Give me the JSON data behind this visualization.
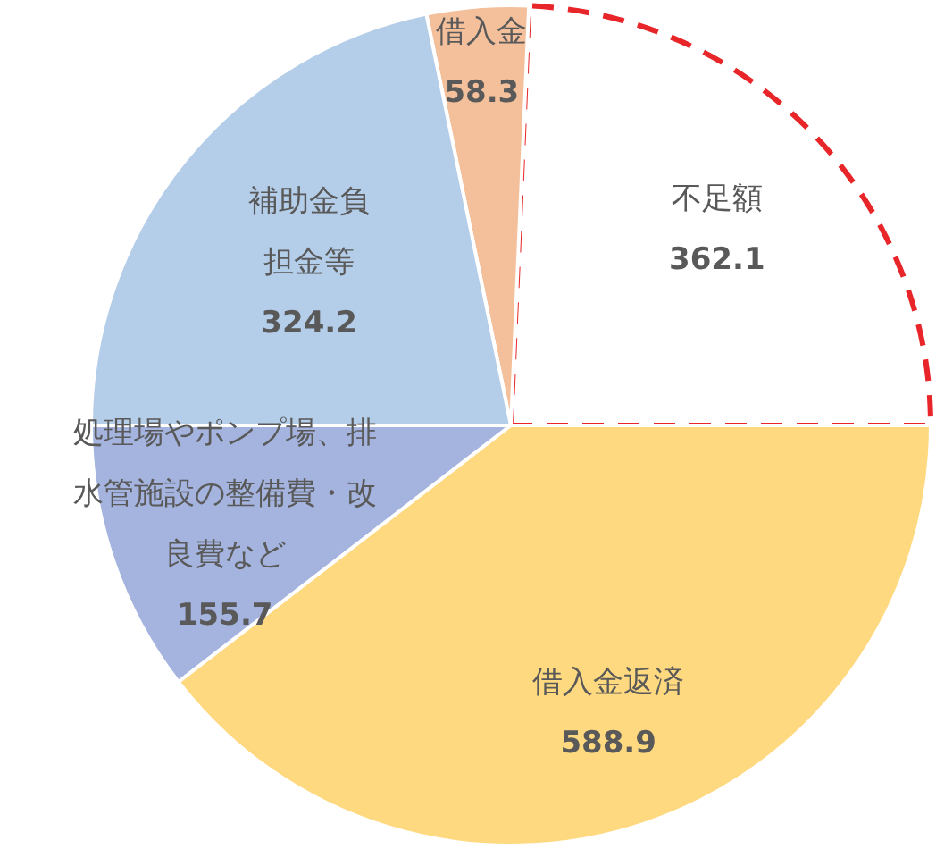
{
  "chart_data": {
    "type": "pie",
    "categories": [
      "不足額",
      "借入金",
      "補助金負担金等",
      "処理場やポンプ場、排水管施設の整備費・改良費など",
      "借入金返済"
    ],
    "values": [
      362.1,
      58.3,
      324.2,
      155.7,
      588.9
    ],
    "colors": [
      "#ffffff",
      "#f4c09c",
      "#b4cde9",
      "#a4b4de",
      "#ffd97f"
    ],
    "data_labels": true
  }
}
